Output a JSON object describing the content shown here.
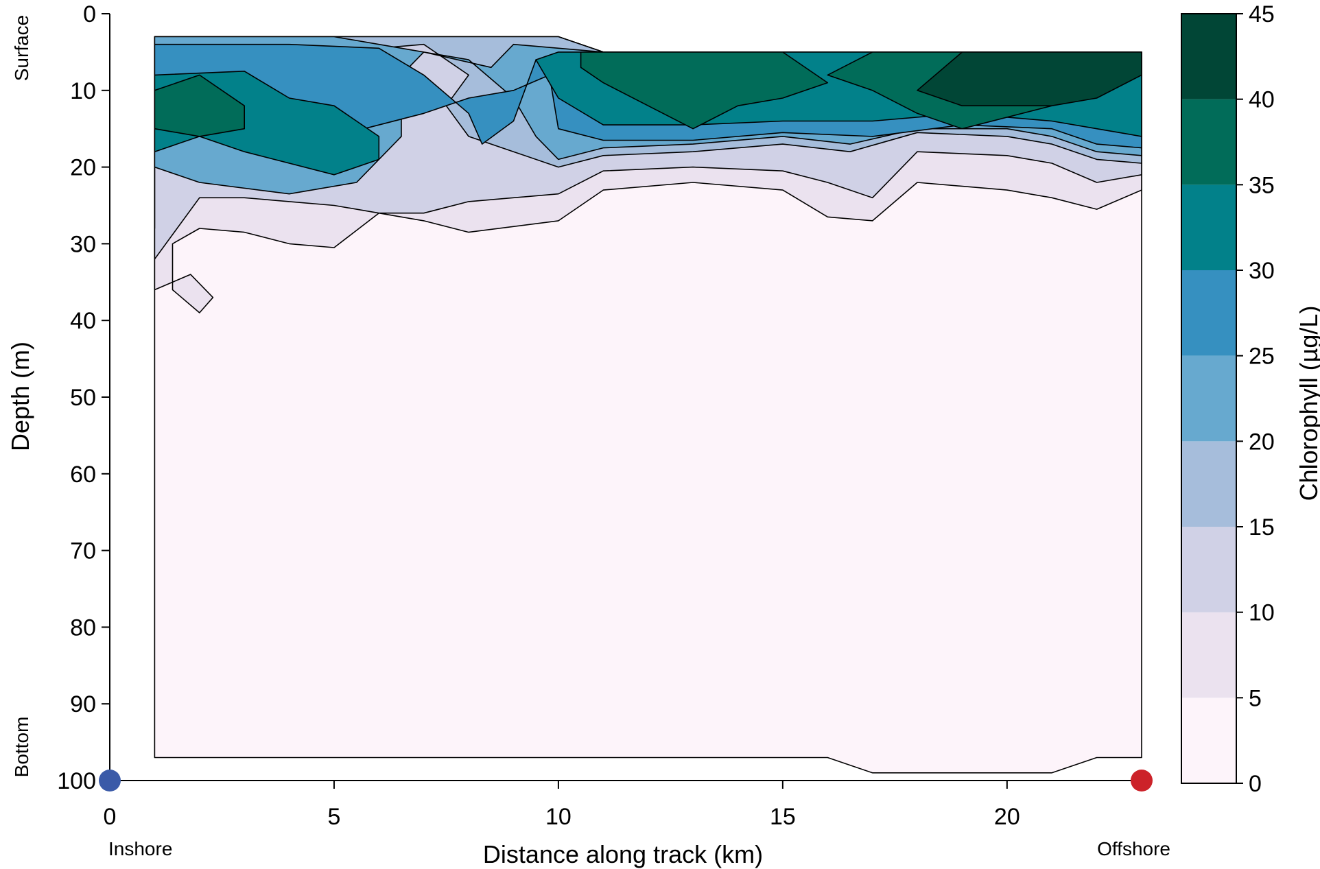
{
  "chart_data": {
    "type": "heatmap",
    "title": "",
    "xlabel": "Distance along track (km)",
    "ylabel": "Depth (m)",
    "xlim": [
      0,
      23
    ],
    "ylim": [
      0,
      100
    ],
    "y_inverted": true,
    "x_ticks": [
      0,
      5,
      10,
      15,
      20
    ],
    "y_ticks": [
      0,
      10,
      20,
      30,
      40,
      50,
      60,
      70,
      80,
      90,
      100
    ],
    "annotations": {
      "x_left": "Inshore",
      "x_right": "Offshore",
      "y_top": "Surface",
      "y_bottom": "Bottom"
    },
    "markers": [
      {
        "label": "Inshore",
        "x": 0,
        "y": 100,
        "color": "#3a5aa8"
      },
      {
        "label": "Offshore",
        "x": 23,
        "y": 100,
        "color": "#cc2229"
      }
    ],
    "colorbar": {
      "label": "Chlorophyll (µg/L)",
      "ticks": [
        0,
        5,
        10,
        15,
        20,
        25,
        30,
        35,
        40,
        45
      ],
      "levels": [
        {
          "range": [
            0,
            5
          ],
          "color": "#fdf4fa"
        },
        {
          "range": [
            5,
            10
          ],
          "color": "#ebe2ef"
        },
        {
          "range": [
            10,
            15
          ],
          "color": "#d0d1e6"
        },
        {
          "range": [
            15,
            20
          ],
          "color": "#a6bddb"
        },
        {
          "range": [
            20,
            25
          ],
          "color": "#67a9cf"
        },
        {
          "range": [
            25,
            30
          ],
          "color": "#3690c0"
        },
        {
          "range": [
            30,
            35
          ],
          "color": "#02818a"
        },
        {
          "range": [
            35,
            40
          ],
          "color": "#016c59"
        },
        {
          "range": [
            40,
            45
          ],
          "color": "#014636"
        }
      ]
    },
    "contour_regions": [
      {
        "level": 0,
        "points": [
          [
            1,
            3
          ],
          [
            10,
            3
          ],
          [
            11,
            5
          ],
          [
            23,
            5
          ],
          [
            23,
            97
          ],
          [
            22,
            97
          ],
          [
            21,
            99
          ],
          [
            17,
            99
          ],
          [
            16,
            97
          ],
          [
            1,
            97
          ]
        ]
      },
      {
        "level": 5,
        "points": [
          [
            1,
            3
          ],
          [
            10,
            3
          ],
          [
            11,
            5
          ],
          [
            23,
            5
          ],
          [
            23,
            23
          ],
          [
            22,
            25.5
          ],
          [
            21,
            24
          ],
          [
            20,
            23
          ],
          [
            18,
            22
          ],
          [
            17,
            27
          ],
          [
            16,
            26.5
          ],
          [
            15,
            23
          ],
          [
            13,
            22
          ],
          [
            11,
            23
          ],
          [
            10,
            27
          ],
          [
            8,
            28.5
          ],
          [
            7,
            27
          ],
          [
            6,
            26
          ],
          [
            5,
            30.5
          ],
          [
            4,
            30
          ],
          [
            3,
            28.5
          ],
          [
            2,
            28
          ],
          [
            1.4,
            30
          ],
          [
            1.4,
            36
          ],
          [
            2,
            39
          ],
          [
            2.3,
            37
          ],
          [
            1.8,
            34
          ],
          [
            1,
            36
          ]
        ]
      },
      {
        "level": 10,
        "points": [
          [
            1,
            3
          ],
          [
            10,
            3
          ],
          [
            11,
            5
          ],
          [
            23,
            5
          ],
          [
            23,
            21
          ],
          [
            22,
            22
          ],
          [
            21,
            19.5
          ],
          [
            20,
            18.5
          ],
          [
            18,
            18
          ],
          [
            17,
            24
          ],
          [
            16,
            22
          ],
          [
            15,
            20.5
          ],
          [
            13,
            20
          ],
          [
            11,
            20.5
          ],
          [
            10,
            23.5
          ],
          [
            8,
            24.5
          ],
          [
            7,
            26
          ],
          [
            6,
            26
          ],
          [
            5,
            25
          ],
          [
            4,
            24.5
          ],
          [
            3,
            24
          ],
          [
            2,
            24
          ],
          [
            1,
            32
          ]
        ]
      },
      {
        "level": 15,
        "points": [
          [
            1,
            3
          ],
          [
            10,
            3
          ],
          [
            11,
            5
          ],
          [
            23,
            5
          ],
          [
            23,
            19.5
          ],
          [
            22,
            19
          ],
          [
            21,
            17
          ],
          [
            20,
            16
          ],
          [
            18,
            15.5
          ],
          [
            16.5,
            18
          ],
          [
            15,
            17
          ],
          [
            13,
            18
          ],
          [
            11,
            18.5
          ],
          [
            10,
            20
          ],
          [
            9,
            18
          ],
          [
            8,
            16
          ],
          [
            7.5,
            12
          ],
          [
            8,
            8
          ],
          [
            7,
            4
          ],
          [
            5,
            5
          ],
          [
            4,
            8
          ],
          [
            3,
            7
          ],
          [
            1,
            11
          ],
          [
            1,
            28
          ]
        ]
      },
      {
        "level": 20,
        "points": [
          [
            1,
            3
          ],
          [
            5,
            3
          ],
          [
            7,
            5
          ],
          [
            8.5,
            7
          ],
          [
            9,
            4
          ],
          [
            11,
            5
          ],
          [
            23,
            5
          ],
          [
            23,
            18.5
          ],
          [
            22,
            18
          ],
          [
            21,
            16
          ],
          [
            20,
            15
          ],
          [
            18,
            15
          ],
          [
            16.5,
            17
          ],
          [
            15,
            16
          ],
          [
            13,
            17
          ],
          [
            11,
            17.5
          ],
          [
            10,
            19
          ],
          [
            9.5,
            16
          ],
          [
            9,
            11
          ],
          [
            8,
            6
          ],
          [
            7,
            5
          ],
          [
            6.5,
            8
          ],
          [
            6.5,
            16
          ],
          [
            5.5,
            22
          ],
          [
            4,
            23.5
          ],
          [
            2,
            22
          ],
          [
            1,
            20
          ]
        ]
      },
      {
        "level": 25,
        "points": [
          [
            1,
            4
          ],
          [
            4,
            4
          ],
          [
            6,
            4.5
          ],
          [
            7,
            8
          ],
          [
            8,
            13
          ],
          [
            8.3,
            17
          ],
          [
            9,
            14
          ],
          [
            9.5,
            6
          ],
          [
            11,
            5
          ],
          [
            23,
            5
          ],
          [
            23,
            17.5
          ],
          [
            22,
            17
          ],
          [
            21,
            15
          ],
          [
            19,
            14.5
          ],
          [
            17,
            16
          ],
          [
            15,
            15.5
          ],
          [
            13,
            16.5
          ],
          [
            11,
            16.5
          ],
          [
            10,
            15
          ],
          [
            9.8,
            8
          ],
          [
            9,
            10
          ],
          [
            8,
            11
          ],
          [
            7,
            13
          ],
          [
            5,
            16
          ],
          [
            4,
            14
          ],
          [
            3,
            13
          ],
          [
            2,
            11
          ],
          [
            1,
            8
          ]
        ]
      },
      {
        "level": 30,
        "points": [
          [
            1,
            8
          ],
          [
            3,
            7.5
          ],
          [
            4,
            11
          ],
          [
            5,
            12
          ],
          [
            6,
            16
          ],
          [
            6,
            19
          ],
          [
            5,
            21
          ],
          [
            3,
            18
          ],
          [
            2,
            16
          ],
          [
            1,
            18
          ]
        ]
      },
      {
        "level": 30,
        "points": [
          [
            10,
            5
          ],
          [
            23,
            5
          ],
          [
            23,
            16
          ],
          [
            22,
            15
          ],
          [
            21,
            14
          ],
          [
            19,
            13
          ],
          [
            17,
            14
          ],
          [
            15,
            14
          ],
          [
            13,
            14.5
          ],
          [
            11,
            14.5
          ],
          [
            10,
            11
          ],
          [
            9.5,
            6
          ]
        ]
      },
      {
        "level": 35,
        "points": [
          [
            1,
            10
          ],
          [
            2,
            8
          ],
          [
            3,
            12
          ],
          [
            3,
            15
          ],
          [
            2,
            16
          ],
          [
            1,
            15
          ]
        ]
      },
      {
        "level": 35,
        "points": [
          [
            10.5,
            5
          ],
          [
            15,
            5
          ],
          [
            16,
            9
          ],
          [
            15,
            11
          ],
          [
            14,
            12
          ],
          [
            13,
            15
          ],
          [
            12,
            12
          ],
          [
            11,
            9
          ],
          [
            10.5,
            7
          ]
        ]
      },
      {
        "level": 35,
        "points": [
          [
            17,
            5
          ],
          [
            23,
            5
          ],
          [
            23,
            7
          ],
          [
            21,
            12
          ],
          [
            19,
            15
          ],
          [
            18,
            13
          ],
          [
            17,
            10
          ],
          [
            16,
            8
          ]
        ]
      },
      {
        "level": 40,
        "points": [
          [
            19,
            5
          ],
          [
            23,
            5
          ],
          [
            23,
            8
          ],
          [
            22,
            11
          ],
          [
            21,
            12
          ],
          [
            19,
            12
          ],
          [
            18,
            10
          ]
        ]
      }
    ]
  }
}
